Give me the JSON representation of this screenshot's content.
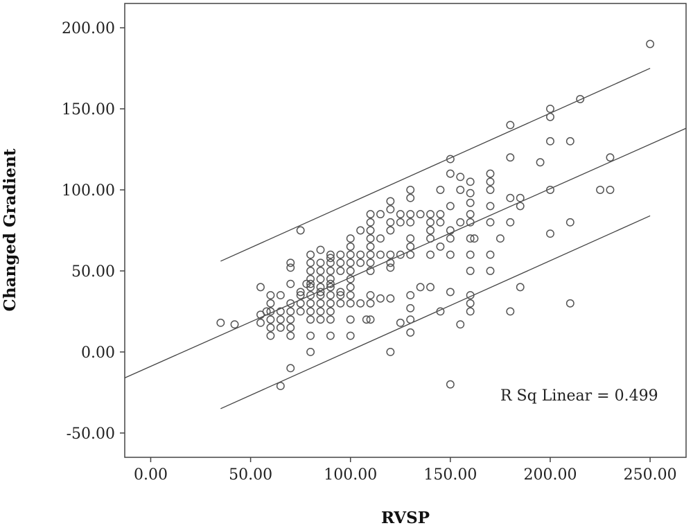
{
  "chart_data": {
    "type": "scatter",
    "xlabel": "RVSP",
    "ylabel": "Changed Gradient",
    "annotation": "R Sq Linear = 0.499",
    "xlim": [
      -13,
      268
    ],
    "ylim": [
      -65,
      215
    ],
    "x_ticks": [
      0,
      50,
      100,
      150,
      200,
      250
    ],
    "y_ticks": [
      -50,
      0,
      50,
      100,
      150,
      200
    ],
    "x_tick_labels": [
      "0.00",
      "50.00",
      "100.00",
      "150.00",
      "200.00",
      "250.00"
    ],
    "y_tick_labels": [
      "-50.00",
      "0.00",
      "50.00",
      "100.00",
      "150.00",
      "200.00"
    ],
    "grid": false,
    "fit_lines": [
      {
        "role": "fit",
        "x": [
          -13,
          268
        ],
        "y": [
          -16,
          138
        ]
      },
      {
        "role": "upper-interval",
        "x": [
          35,
          250
        ],
        "y": [
          56,
          175
        ]
      },
      {
        "role": "lower-interval",
        "x": [
          35,
          250
        ],
        "y": [
          -35,
          84
        ]
      }
    ],
    "points": [
      [
        35,
        18
      ],
      [
        42,
        17
      ],
      [
        55,
        40
      ],
      [
        55,
        23
      ],
      [
        55,
        18
      ],
      [
        58,
        25
      ],
      [
        60,
        35
      ],
      [
        60,
        30
      ],
      [
        60,
        25
      ],
      [
        60,
        20
      ],
      [
        60,
        15
      ],
      [
        60,
        10
      ],
      [
        65,
        35
      ],
      [
        65,
        25
      ],
      [
        65,
        20
      ],
      [
        65,
        15
      ],
      [
        65,
        -21
      ],
      [
        70,
        55
      ],
      [
        70,
        52
      ],
      [
        70,
        42
      ],
      [
        70,
        30
      ],
      [
        70,
        25
      ],
      [
        70,
        20
      ],
      [
        70,
        15
      ],
      [
        70,
        10
      ],
      [
        70,
        -10
      ],
      [
        75,
        75
      ],
      [
        75,
        37
      ],
      [
        75,
        35
      ],
      [
        75,
        30
      ],
      [
        75,
        25
      ],
      [
        78,
        42
      ],
      [
        80,
        60
      ],
      [
        80,
        55
      ],
      [
        80,
        50
      ],
      [
        80,
        45
      ],
      [
        80,
        42
      ],
      [
        80,
        40
      ],
      [
        80,
        35
      ],
      [
        80,
        30
      ],
      [
        80,
        25
      ],
      [
        80,
        20
      ],
      [
        80,
        10
      ],
      [
        80,
        0
      ],
      [
        85,
        63
      ],
      [
        85,
        55
      ],
      [
        85,
        50
      ],
      [
        85,
        45
      ],
      [
        85,
        40
      ],
      [
        85,
        37
      ],
      [
        85,
        35
      ],
      [
        85,
        30
      ],
      [
        85,
        25
      ],
      [
        85,
        20
      ],
      [
        90,
        60
      ],
      [
        90,
        58
      ],
      [
        90,
        55
      ],
      [
        90,
        50
      ],
      [
        90,
        45
      ],
      [
        90,
        42
      ],
      [
        90,
        40
      ],
      [
        90,
        35
      ],
      [
        90,
        30
      ],
      [
        90,
        25
      ],
      [
        90,
        20
      ],
      [
        90,
        10
      ],
      [
        95,
        60
      ],
      [
        95,
        55
      ],
      [
        95,
        50
      ],
      [
        95,
        37
      ],
      [
        95,
        35
      ],
      [
        95,
        30
      ],
      [
        100,
        70
      ],
      [
        100,
        65
      ],
      [
        100,
        60
      ],
      [
        100,
        55
      ],
      [
        100,
        50
      ],
      [
        100,
        45
      ],
      [
        100,
        40
      ],
      [
        100,
        35
      ],
      [
        100,
        30
      ],
      [
        100,
        20
      ],
      [
        100,
        10
      ],
      [
        105,
        75
      ],
      [
        105,
        60
      ],
      [
        105,
        55
      ],
      [
        105,
        30
      ],
      [
        108,
        20
      ],
      [
        110,
        85
      ],
      [
        110,
        80
      ],
      [
        110,
        75
      ],
      [
        110,
        70
      ],
      [
        110,
        65
      ],
      [
        110,
        60
      ],
      [
        110,
        55
      ],
      [
        110,
        50
      ],
      [
        110,
        35
      ],
      [
        110,
        30
      ],
      [
        110,
        20
      ],
      [
        115,
        85
      ],
      [
        115,
        70
      ],
      [
        115,
        60
      ],
      [
        115,
        33
      ],
      [
        120,
        93
      ],
      [
        120,
        88
      ],
      [
        120,
        80
      ],
      [
        120,
        75
      ],
      [
        120,
        60
      ],
      [
        120,
        55
      ],
      [
        120,
        52
      ],
      [
        120,
        33
      ],
      [
        120,
        0
      ],
      [
        125,
        85
      ],
      [
        125,
        80
      ],
      [
        125,
        60
      ],
      [
        125,
        18
      ],
      [
        130,
        100
      ],
      [
        130,
        95
      ],
      [
        130,
        85
      ],
      [
        130,
        80
      ],
      [
        130,
        70
      ],
      [
        130,
        65
      ],
      [
        130,
        60
      ],
      [
        130,
        35
      ],
      [
        130,
        27
      ],
      [
        130,
        20
      ],
      [
        130,
        12
      ],
      [
        135,
        85
      ],
      [
        135,
        40
      ],
      [
        140,
        85
      ],
      [
        140,
        80
      ],
      [
        140,
        75
      ],
      [
        140,
        70
      ],
      [
        140,
        60
      ],
      [
        140,
        40
      ],
      [
        145,
        100
      ],
      [
        145,
        85
      ],
      [
        145,
        80
      ],
      [
        145,
        65
      ],
      [
        145,
        25
      ],
      [
        150,
        119
      ],
      [
        150,
        110
      ],
      [
        150,
        90
      ],
      [
        150,
        75
      ],
      [
        150,
        70
      ],
      [
        150,
        60
      ],
      [
        150,
        37
      ],
      [
        150,
        -20
      ],
      [
        155,
        108
      ],
      [
        155,
        100
      ],
      [
        155,
        80
      ],
      [
        155,
        17
      ],
      [
        160,
        105
      ],
      [
        160,
        98
      ],
      [
        160,
        92
      ],
      [
        160,
        85
      ],
      [
        160,
        80
      ],
      [
        160,
        70
      ],
      [
        160,
        60
      ],
      [
        160,
        50
      ],
      [
        160,
        35
      ],
      [
        160,
        30
      ],
      [
        160,
        25
      ],
      [
        162,
        70
      ],
      [
        170,
        110
      ],
      [
        170,
        105
      ],
      [
        170,
        100
      ],
      [
        170,
        90
      ],
      [
        170,
        80
      ],
      [
        170,
        60
      ],
      [
        170,
        50
      ],
      [
        175,
        70
      ],
      [
        180,
        140
      ],
      [
        180,
        120
      ],
      [
        180,
        95
      ],
      [
        180,
        80
      ],
      [
        180,
        25
      ],
      [
        185,
        95
      ],
      [
        185,
        90
      ],
      [
        185,
        40
      ],
      [
        195,
        117
      ],
      [
        200,
        150
      ],
      [
        200,
        145
      ],
      [
        200,
        130
      ],
      [
        200,
        100
      ],
      [
        200,
        73
      ],
      [
        210,
        130
      ],
      [
        210,
        80
      ],
      [
        210,
        30
      ],
      [
        215,
        156
      ],
      [
        225,
        100
      ],
      [
        230,
        120
      ],
      [
        230,
        100
      ],
      [
        250,
        190
      ]
    ]
  }
}
